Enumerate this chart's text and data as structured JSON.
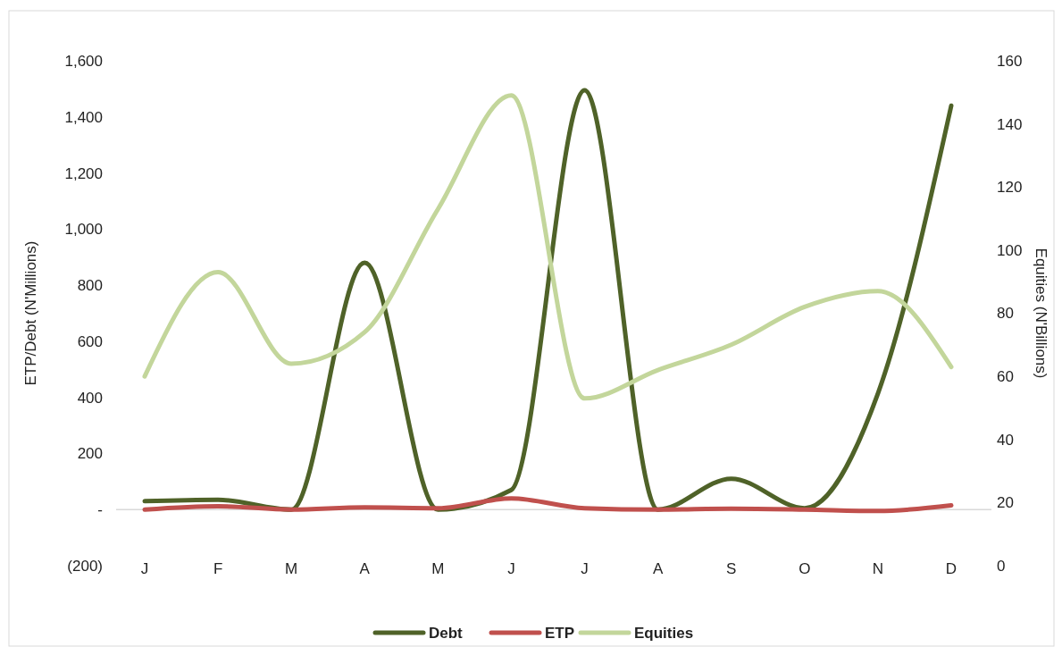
{
  "chart_data": {
    "type": "line",
    "categories": [
      "J",
      "F",
      "M",
      "A",
      "M",
      "J",
      "J",
      "A",
      "S",
      "O",
      "N",
      "D"
    ],
    "ylabel": "ETP/Debt (N'Millions)",
    "y2label": "Equities (N'Billions)",
    "ylim": [
      -200,
      1600
    ],
    "yticks": [
      {
        "value": -200,
        "label": "(200)"
      },
      {
        "value": 0,
        "label": "-"
      },
      200,
      400,
      600,
      800,
      {
        "value": 1000,
        "label": "1,000"
      },
      {
        "value": 1200,
        "label": "1,200"
      },
      {
        "value": 1400,
        "label": "1,400"
      },
      {
        "value": 1600,
        "label": "1,600"
      }
    ],
    "y2lim": [
      0,
      160
    ],
    "y2ticks": [
      0,
      20,
      40,
      60,
      80,
      100,
      120,
      140,
      160
    ],
    "ref_lines": [
      {
        "axis": "y",
        "value": 0,
        "color": "#d9d9d9"
      }
    ],
    "legend": "bottom",
    "marker": "none",
    "line_style": "solid",
    "series": [
      {
        "name": "Debt",
        "color": "#4f6228",
        "values": [
          30,
          35,
          0,
          880,
          0,
          70,
          1495,
          0,
          110,
          5,
          414,
          1440
        ]
      },
      {
        "name": "ETP",
        "color": "#c0504d",
        "values": [
          0,
          12,
          0,
          8,
          5,
          40,
          5,
          0,
          3,
          0,
          -5,
          15
        ]
      },
      {
        "name": "Equities",
        "color": "#c3d69b",
        "axis": "y2",
        "values": [
          60,
          93,
          64,
          74,
          113,
          149,
          53,
          62,
          70,
          82,
          87,
          63
        ]
      }
    ]
  }
}
